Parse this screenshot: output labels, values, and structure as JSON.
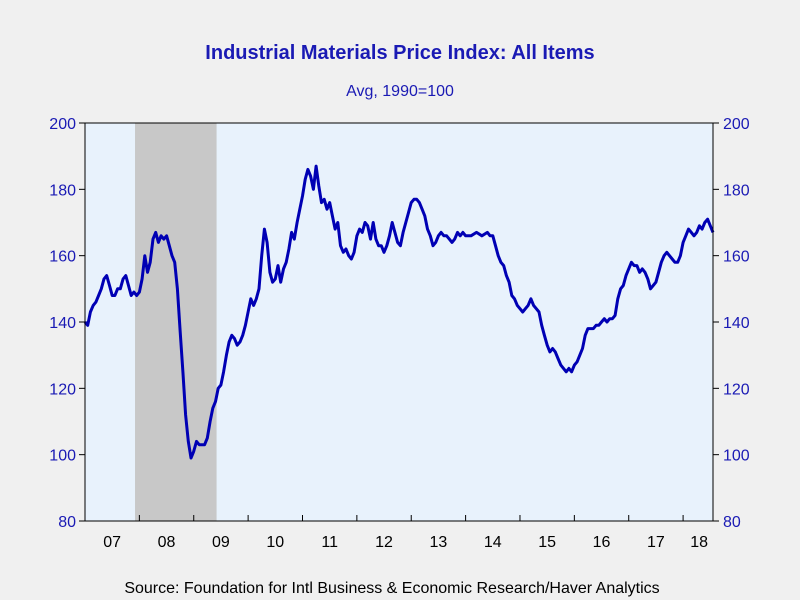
{
  "chart_data": {
    "type": "line",
    "title": "Industrial Materials Price Index: All Items",
    "subtitle": "Avg, 1990=100",
    "source": "Source:  Foundation for Intl Business & Economic Research/Haver Analytics",
    "xlabel": "",
    "ylabel": "",
    "ylim": [
      80,
      200
    ],
    "yticks": [
      80,
      100,
      120,
      140,
      160,
      180,
      200
    ],
    "xlim": [
      2007.0,
      2018.55
    ],
    "year_labels": [
      "07",
      "08",
      "09",
      "10",
      "11",
      "12",
      "13",
      "14",
      "15",
      "16",
      "17",
      "18"
    ],
    "grid": false,
    "recession_shading": {
      "start": 2007.92,
      "end": 2009.42
    },
    "series": [
      {
        "points": [
          [
            2007.0,
            140
          ],
          [
            2007.05,
            139
          ],
          [
            2007.1,
            143
          ],
          [
            2007.15,
            145
          ],
          [
            2007.2,
            146
          ],
          [
            2007.25,
            148
          ],
          [
            2007.3,
            150
          ],
          [
            2007.35,
            153
          ],
          [
            2007.4,
            154
          ],
          [
            2007.45,
            151
          ],
          [
            2007.5,
            148
          ],
          [
            2007.55,
            148
          ],
          [
            2007.6,
            150
          ],
          [
            2007.65,
            150
          ],
          [
            2007.7,
            153
          ],
          [
            2007.75,
            154
          ],
          [
            2007.8,
            151
          ],
          [
            2007.85,
            148
          ],
          [
            2007.9,
            149
          ],
          [
            2007.95,
            148
          ],
          [
            2008.0,
            149
          ],
          [
            2008.05,
            153
          ],
          [
            2008.1,
            160
          ],
          [
            2008.15,
            155
          ],
          [
            2008.2,
            158
          ],
          [
            2008.25,
            165
          ],
          [
            2008.3,
            167
          ],
          [
            2008.35,
            164
          ],
          [
            2008.4,
            166
          ],
          [
            2008.45,
            165
          ],
          [
            2008.5,
            166
          ],
          [
            2008.55,
            163
          ],
          [
            2008.6,
            160
          ],
          [
            2008.65,
            158
          ],
          [
            2008.7,
            150
          ],
          [
            2008.75,
            137
          ],
          [
            2008.8,
            125
          ],
          [
            2008.85,
            112
          ],
          [
            2008.9,
            104
          ],
          [
            2008.95,
            99
          ],
          [
            2009.0,
            101
          ],
          [
            2009.05,
            104
          ],
          [
            2009.1,
            103
          ],
          [
            2009.15,
            103
          ],
          [
            2009.2,
            103
          ],
          [
            2009.25,
            105
          ],
          [
            2009.3,
            110
          ],
          [
            2009.35,
            114
          ],
          [
            2009.4,
            116
          ],
          [
            2009.45,
            120
          ],
          [
            2009.5,
            121
          ],
          [
            2009.55,
            125
          ],
          [
            2009.6,
            130
          ],
          [
            2009.65,
            134
          ],
          [
            2009.7,
            136
          ],
          [
            2009.75,
            135
          ],
          [
            2009.8,
            133
          ],
          [
            2009.85,
            134
          ],
          [
            2009.9,
            136
          ],
          [
            2009.95,
            139
          ],
          [
            2010.0,
            143
          ],
          [
            2010.05,
            147
          ],
          [
            2010.1,
            145
          ],
          [
            2010.15,
            147
          ],
          [
            2010.2,
            150
          ],
          [
            2010.25,
            160
          ],
          [
            2010.3,
            168
          ],
          [
            2010.35,
            164
          ],
          [
            2010.4,
            155
          ],
          [
            2010.45,
            152
          ],
          [
            2010.5,
            153
          ],
          [
            2010.55,
            157
          ],
          [
            2010.6,
            152
          ],
          [
            2010.65,
            156
          ],
          [
            2010.7,
            158
          ],
          [
            2010.75,
            162
          ],
          [
            2010.8,
            167
          ],
          [
            2010.85,
            165
          ],
          [
            2010.9,
            170
          ],
          [
            2010.95,
            174
          ],
          [
            2011.0,
            178
          ],
          [
            2011.05,
            183
          ],
          [
            2011.1,
            186
          ],
          [
            2011.15,
            184
          ],
          [
            2011.2,
            180
          ],
          [
            2011.25,
            187
          ],
          [
            2011.3,
            181
          ],
          [
            2011.35,
            176
          ],
          [
            2011.4,
            177
          ],
          [
            2011.45,
            174
          ],
          [
            2011.5,
            176
          ],
          [
            2011.55,
            172
          ],
          [
            2011.6,
            168
          ],
          [
            2011.65,
            170
          ],
          [
            2011.7,
            163
          ],
          [
            2011.75,
            161
          ],
          [
            2011.8,
            162
          ],
          [
            2011.85,
            160
          ],
          [
            2011.9,
            159
          ],
          [
            2011.95,
            161
          ],
          [
            2012.0,
            166
          ],
          [
            2012.05,
            168
          ],
          [
            2012.1,
            167
          ],
          [
            2012.15,
            170
          ],
          [
            2012.2,
            169
          ],
          [
            2012.25,
            165
          ],
          [
            2012.3,
            170
          ],
          [
            2012.35,
            165
          ],
          [
            2012.4,
            163
          ],
          [
            2012.45,
            163
          ],
          [
            2012.5,
            161
          ],
          [
            2012.55,
            163
          ],
          [
            2012.6,
            166
          ],
          [
            2012.65,
            170
          ],
          [
            2012.7,
            167
          ],
          [
            2012.75,
            164
          ],
          [
            2012.8,
            163
          ],
          [
            2012.85,
            167
          ],
          [
            2012.9,
            170
          ],
          [
            2012.95,
            173
          ],
          [
            2013.0,
            176
          ],
          [
            2013.05,
            177
          ],
          [
            2013.1,
            177
          ],
          [
            2013.15,
            176
          ],
          [
            2013.2,
            174
          ],
          [
            2013.25,
            172
          ],
          [
            2013.3,
            168
          ],
          [
            2013.35,
            166
          ],
          [
            2013.4,
            163
          ],
          [
            2013.45,
            164
          ],
          [
            2013.5,
            166
          ],
          [
            2013.55,
            167
          ],
          [
            2013.6,
            166
          ],
          [
            2013.65,
            166
          ],
          [
            2013.7,
            165
          ],
          [
            2013.75,
            164
          ],
          [
            2013.8,
            165
          ],
          [
            2013.85,
            167
          ],
          [
            2013.9,
            166
          ],
          [
            2013.95,
            167
          ],
          [
            2014.0,
            166
          ],
          [
            2014.1,
            166
          ],
          [
            2014.2,
            167
          ],
          [
            2014.3,
            166
          ],
          [
            2014.4,
            167
          ],
          [
            2014.45,
            166
          ],
          [
            2014.5,
            166
          ],
          [
            2014.55,
            163
          ],
          [
            2014.6,
            160
          ],
          [
            2014.65,
            158
          ],
          [
            2014.7,
            157
          ],
          [
            2014.75,
            154
          ],
          [
            2014.8,
            152
          ],
          [
            2014.85,
            148
          ],
          [
            2014.9,
            147
          ],
          [
            2014.95,
            145
          ],
          [
            2015.0,
            144
          ],
          [
            2015.05,
            143
          ],
          [
            2015.1,
            144
          ],
          [
            2015.15,
            145
          ],
          [
            2015.2,
            147
          ],
          [
            2015.25,
            145
          ],
          [
            2015.3,
            144
          ],
          [
            2015.35,
            143
          ],
          [
            2015.4,
            139
          ],
          [
            2015.45,
            136
          ],
          [
            2015.5,
            133
          ],
          [
            2015.55,
            131
          ],
          [
            2015.6,
            132
          ],
          [
            2015.65,
            131
          ],
          [
            2015.7,
            129
          ],
          [
            2015.75,
            127
          ],
          [
            2015.8,
            126
          ],
          [
            2015.85,
            125
          ],
          [
            2015.9,
            126
          ],
          [
            2015.95,
            125
          ],
          [
            2016.0,
            127
          ],
          [
            2016.05,
            128
          ],
          [
            2016.1,
            130
          ],
          [
            2016.15,
            132
          ],
          [
            2016.2,
            136
          ],
          [
            2016.25,
            138
          ],
          [
            2016.3,
            138
          ],
          [
            2016.35,
            138
          ],
          [
            2016.4,
            139
          ],
          [
            2016.45,
            139
          ],
          [
            2016.5,
            140
          ],
          [
            2016.55,
            141
          ],
          [
            2016.6,
            140
          ],
          [
            2016.65,
            141
          ],
          [
            2016.7,
            141
          ],
          [
            2016.75,
            142
          ],
          [
            2016.8,
            147
          ],
          [
            2016.85,
            150
          ],
          [
            2016.9,
            151
          ],
          [
            2016.95,
            154
          ],
          [
            2017.0,
            156
          ],
          [
            2017.05,
            158
          ],
          [
            2017.1,
            157
          ],
          [
            2017.15,
            157
          ],
          [
            2017.2,
            155
          ],
          [
            2017.25,
            156
          ],
          [
            2017.3,
            155
          ],
          [
            2017.35,
            153
          ],
          [
            2017.4,
            150
          ],
          [
            2017.45,
            151
          ],
          [
            2017.5,
            152
          ],
          [
            2017.55,
            155
          ],
          [
            2017.6,
            158
          ],
          [
            2017.65,
            160
          ],
          [
            2017.7,
            161
          ],
          [
            2017.75,
            160
          ],
          [
            2017.8,
            159
          ],
          [
            2017.85,
            158
          ],
          [
            2017.9,
            158
          ],
          [
            2017.95,
            160
          ],
          [
            2018.0,
            164
          ],
          [
            2018.05,
            166
          ],
          [
            2018.1,
            168
          ],
          [
            2018.15,
            167
          ],
          [
            2018.2,
            166
          ],
          [
            2018.25,
            167
          ],
          [
            2018.3,
            169
          ],
          [
            2018.35,
            168
          ],
          [
            2018.4,
            170
          ],
          [
            2018.45,
            171
          ],
          [
            2018.5,
            169
          ],
          [
            2018.55,
            167
          ]
        ]
      }
    ]
  },
  "colors": {
    "page_background": "#f0f0f0",
    "plot_background": "#e8f2fc",
    "recession": "#c8c8c8",
    "series_line": "#0000b4",
    "text": "#1a1ab4",
    "axis": "#000000"
  }
}
